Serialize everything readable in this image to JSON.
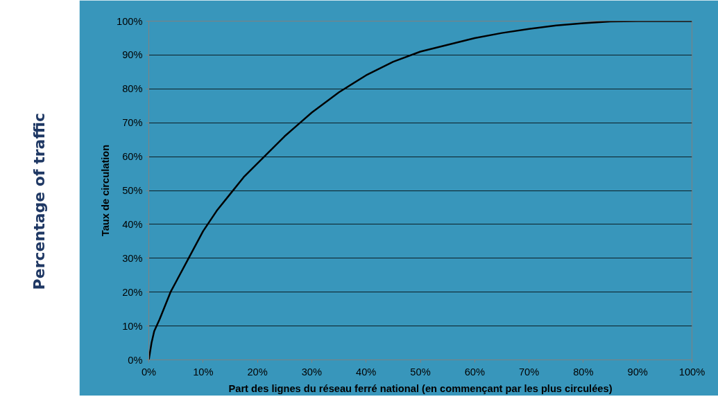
{
  "chart_data": {
    "type": "line",
    "xlabel": "Part des lignes du réseau ferré national (en commençant par les plus circulées)",
    "ylabel": "Taux de circulation",
    "annotations": [
      "Percentage of traffic"
    ],
    "x": [
      0,
      0.5,
      1,
      2,
      3,
      4,
      5,
      7,
      10,
      12.5,
      15,
      17.5,
      20,
      22.5,
      25,
      27.5,
      30,
      35,
      40,
      45,
      50,
      55,
      60,
      65,
      70,
      75,
      80,
      85,
      90,
      95,
      100
    ],
    "series": [
      {
        "color": "#000000",
        "values": [
          0,
          5,
          8.5,
          12,
          16,
          20,
          23,
          29,
          38,
          44,
          49,
          54,
          58,
          62,
          66,
          69.5,
          73,
          79,
          84,
          88,
          91,
          93,
          95,
          96.5,
          97.7,
          98.7,
          99.4,
          99.9,
          100,
          100,
          100
        ]
      }
    ],
    "xlim": [
      0,
      100
    ],
    "ylim": [
      0,
      100
    ],
    "xticks": [
      {
        "value": 0,
        "label": "0%"
      },
      {
        "value": 10,
        "label": "10%"
      },
      {
        "value": 20,
        "label": "20%"
      },
      {
        "value": 30,
        "label": "30%"
      },
      {
        "value": 40,
        "label": "40%"
      },
      {
        "value": 50,
        "label": "50%"
      },
      {
        "value": 60,
        "label": "60%"
      },
      {
        "value": 70,
        "label": "70%"
      },
      {
        "value": 80,
        "label": "80%"
      },
      {
        "value": 90,
        "label": "90%"
      },
      {
        "value": 100,
        "label": "100%"
      }
    ],
    "yticks": [
      {
        "value": 0,
        "label": "0%"
      },
      {
        "value": 10,
        "label": "10%"
      },
      {
        "value": 20,
        "label": "20%"
      },
      {
        "value": 30,
        "label": "30%"
      },
      {
        "value": 40,
        "label": "40%"
      },
      {
        "value": 50,
        "label": "50%"
      },
      {
        "value": 60,
        "label": "60%"
      },
      {
        "value": 70,
        "label": "70%"
      },
      {
        "value": 80,
        "label": "80%"
      },
      {
        "value": 90,
        "label": "90%"
      },
      {
        "value": 100,
        "label": "100%"
      }
    ],
    "grid": "y",
    "marker": "none",
    "line_style": "solid"
  }
}
